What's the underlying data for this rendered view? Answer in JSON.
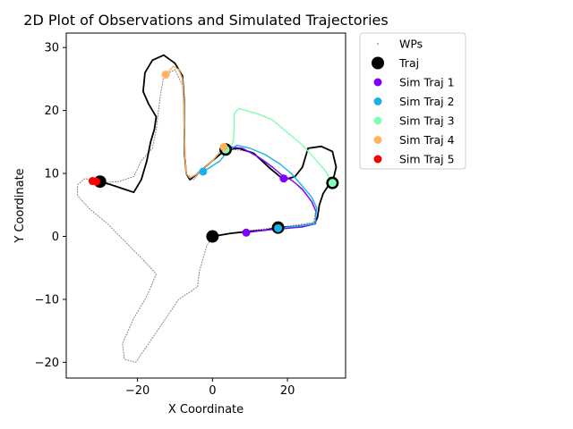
{
  "chart_data": {
    "type": "scatter",
    "title": "2D Plot of Observations and Simulated Trajectories",
    "xlabel": "X Coordinate",
    "ylabel": "Y Coordinate",
    "xlim": [
      -39,
      35.5
    ],
    "ylim": [
      -22.5,
      32.3
    ],
    "xticks": [
      -20,
      0,
      20
    ],
    "yticks": [
      -20,
      -10,
      0,
      10,
      20,
      30
    ],
    "grid": false,
    "legend_position": "outside-right",
    "legend": [
      {
        "label": "WPs",
        "marker": "dot",
        "color": "#808080"
      },
      {
        "label": "Traj",
        "marker": "circle-large",
        "color": "#000000"
      },
      {
        "label": "Sim Traj 1",
        "marker": "circle",
        "color": "#8000ff"
      },
      {
        "label": "Sim Traj 2",
        "marker": "circle",
        "color": "#1ab2e6"
      },
      {
        "label": "Sim Traj 3",
        "marker": "circle",
        "color": "#80ffb4"
      },
      {
        "label": "Sim Traj 4",
        "marker": "circle",
        "color": "#ffb360"
      },
      {
        "label": "Sim Traj 5",
        "marker": "circle",
        "color": "#ff0000"
      }
    ],
    "series": [
      {
        "name": "WPs",
        "color": "#808080",
        "style": "dotted",
        "points": [
          [
            -30,
            8.5
          ],
          [
            -34,
            9.2
          ],
          [
            -36,
            8.2
          ],
          [
            -36,
            6.5
          ],
          [
            -33,
            4.5
          ],
          [
            -28,
            2
          ],
          [
            -23,
            -1
          ],
          [
            -18,
            -4
          ],
          [
            -15,
            -6
          ],
          [
            -17.5,
            -9.5
          ],
          [
            -21,
            -13
          ],
          [
            -24,
            -17
          ],
          [
            -23.5,
            -19.5
          ],
          [
            -20.5,
            -20
          ],
          [
            -17,
            -17
          ],
          [
            -13,
            -13.5
          ],
          [
            -9,
            -10
          ],
          [
            -4,
            -8
          ],
          [
            -3.5,
            -5.5
          ],
          [
            -1.5,
            -1.5
          ],
          [
            0,
            0
          ],
          [
            8,
            0.8
          ],
          [
            14,
            1.2
          ],
          [
            20,
            1.6
          ],
          [
            27,
            2.2
          ],
          [
            27.5,
            4
          ],
          [
            26,
            6
          ],
          [
            22,
            8.5
          ],
          [
            18,
            10
          ],
          [
            14,
            12
          ],
          [
            10,
            13.5
          ],
          [
            6,
            13.8
          ],
          [
            3,
            13.5
          ],
          [
            0,
            12
          ],
          [
            -3,
            10.5
          ],
          [
            -5,
            9
          ],
          [
            -7,
            10
          ],
          [
            -7.3,
            13
          ],
          [
            -7.5,
            18
          ],
          [
            -8,
            24
          ],
          [
            -10,
            26.5
          ],
          [
            -13,
            25.5
          ],
          [
            -14,
            22
          ],
          [
            -15,
            17
          ],
          [
            -16,
            14
          ],
          [
            -19,
            12
          ],
          [
            -21,
            9.5
          ],
          [
            -25,
            8.7
          ],
          [
            -30,
            8.5
          ]
        ]
      },
      {
        "name": "Traj",
        "color": "#000000",
        "points": [
          [
            0,
            0
          ],
          [
            5,
            0.5
          ],
          [
            10,
            0.8
          ],
          [
            14,
            1
          ],
          [
            17.5,
            1.4
          ],
          [
            21,
            1.5
          ],
          [
            24,
            1.7
          ],
          [
            27.2,
            2
          ],
          [
            28,
            3
          ],
          [
            28.5,
            5
          ],
          [
            29.5,
            6.8
          ],
          [
            31,
            8.2
          ],
          [
            32,
            8.5
          ],
          [
            33,
            11
          ],
          [
            32,
            13.5
          ],
          [
            29,
            14.3
          ],
          [
            25.5,
            14
          ],
          [
            24,
            11
          ],
          [
            22,
            9.5
          ],
          [
            19,
            9
          ],
          [
            15,
            11
          ],
          [
            11,
            13.2
          ],
          [
            7,
            14
          ],
          [
            3.5,
            13.8
          ],
          [
            0,
            12
          ],
          [
            -2,
            11
          ],
          [
            -4,
            10
          ],
          [
            -6,
            9
          ],
          [
            -7,
            10
          ],
          [
            -7.4,
            13
          ],
          [
            -7.5,
            17
          ],
          [
            -7.6,
            22
          ],
          [
            -8,
            25.5
          ],
          [
            -10,
            27.5
          ],
          [
            -13,
            28.8
          ],
          [
            -16,
            28
          ],
          [
            -18,
            26
          ],
          [
            -18.5,
            23
          ],
          [
            -17,
            21
          ],
          [
            -15,
            19
          ],
          [
            -15.5,
            17
          ],
          [
            -16.5,
            15
          ],
          [
            -17.5,
            12
          ],
          [
            -19,
            9
          ],
          [
            -21,
            7
          ],
          [
            -24,
            7.6
          ],
          [
            -27,
            8.2
          ],
          [
            -30,
            8.7
          ]
        ]
      },
      {
        "name": "Sim Traj 1",
        "color": "#8000ff",
        "points": [
          [
            9,
            0.6
          ],
          [
            14,
            1
          ],
          [
            20,
            1.3
          ],
          [
            24,
            1.5
          ],
          [
            27.5,
            2
          ],
          [
            27.6,
            4
          ],
          [
            26.5,
            5.5
          ],
          [
            24,
            7.5
          ],
          [
            21,
            9
          ],
          [
            19,
            9.5
          ],
          [
            16,
            11
          ],
          [
            12,
            12.7
          ],
          [
            8,
            14
          ],
          [
            5,
            14.2
          ]
        ]
      },
      {
        "name": "Sim Traj 2",
        "color": "#1ab2e6",
        "points": [
          [
            17.5,
            1.3
          ],
          [
            21,
            1.5
          ],
          [
            24,
            1.7
          ],
          [
            27.3,
            2
          ],
          [
            27.8,
            4.5
          ],
          [
            26.5,
            6.2
          ],
          [
            24,
            8
          ],
          [
            21,
            10
          ],
          [
            18,
            11.5
          ],
          [
            14,
            13
          ],
          [
            10,
            14
          ],
          [
            6.5,
            14.5
          ],
          [
            4,
            13.5
          ],
          [
            2,
            12
          ],
          [
            0,
            11.2
          ],
          [
            -2.5,
            10.3
          ]
        ]
      },
      {
        "name": "Sim Traj 3",
        "color": "#80ffb4",
        "points": [
          [
            32,
            8.5
          ],
          [
            30,
            10.5
          ],
          [
            27.5,
            12.2
          ],
          [
            24,
            14.5
          ],
          [
            20,
            16.5
          ],
          [
            16,
            18.5
          ],
          [
            12,
            19.5
          ],
          [
            7,
            20.3
          ],
          [
            5.8,
            19.5
          ],
          [
            5.8,
            17
          ],
          [
            5.5,
            15
          ],
          [
            4.5,
            14
          ],
          [
            3.5,
            13.8
          ]
        ]
      },
      {
        "name": "Sim Traj 4",
        "color": "#ffb360",
        "points": [
          [
            3,
            14.2
          ],
          [
            0,
            12
          ],
          [
            -2,
            11
          ],
          [
            -4,
            10
          ],
          [
            -6,
            9.3
          ],
          [
            -7,
            10
          ],
          [
            -7.3,
            12.5
          ],
          [
            -7.5,
            17
          ],
          [
            -7.7,
            22
          ],
          [
            -8,
            25
          ],
          [
            -9,
            26.5
          ],
          [
            -10.5,
            27
          ],
          [
            -12,
            26
          ],
          [
            -12.5,
            25.7
          ]
        ]
      },
      {
        "name": "Sim Traj 5",
        "color": "#ff0000",
        "points": [
          [
            -32,
            8.8
          ],
          [
            -31,
            8.7
          ]
        ]
      }
    ],
    "markers": [
      {
        "series": "Traj",
        "points": [
          [
            0,
            0
          ],
          [
            17.5,
            1.4
          ],
          [
            32,
            8.5
          ],
          [
            3.5,
            13.8
          ],
          [
            -30,
            8.7
          ]
        ]
      },
      {
        "series": "Sim Traj 1",
        "points": [
          [
            9,
            0.6
          ],
          [
            19,
            9.2
          ]
        ]
      },
      {
        "series": "Sim Traj 2",
        "points": [
          [
            17.5,
            1.3
          ],
          [
            -2.5,
            10.3
          ]
        ]
      },
      {
        "series": "Sim Traj 3",
        "points": [
          [
            32,
            8.5
          ],
          [
            3.5,
            13.8
          ]
        ]
      },
      {
        "series": "Sim Traj 4",
        "points": [
          [
            -12.5,
            25.7
          ],
          [
            3,
            14.2
          ]
        ]
      },
      {
        "series": "Sim Traj 5",
        "points": [
          [
            -32,
            8.8
          ],
          [
            -31,
            8.7
          ]
        ]
      }
    ]
  }
}
